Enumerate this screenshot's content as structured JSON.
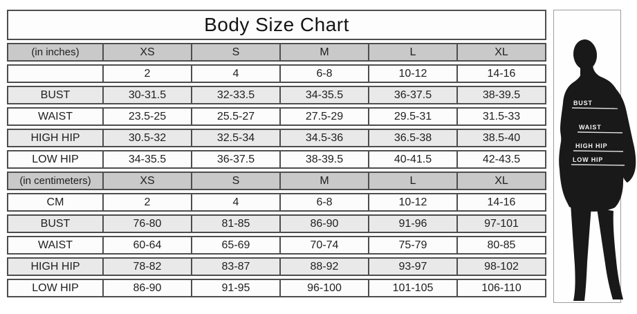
{
  "title": "Body Size Chart",
  "colors": {
    "header_bg": "#c9c9c9",
    "shaded_row_bg": "#e9e9e9",
    "plain_row_bg": "#fcfcfc",
    "table_border": "#4d4d4d",
    "silhouette_fill": "#191919"
  },
  "chart_data": {
    "type": "table",
    "title": "Body Size Chart",
    "sections": [
      {
        "unit_label": "(in inches)",
        "sizes": [
          "XS",
          "S",
          "M",
          "L",
          "XL"
        ],
        "rows": [
          {
            "label": "",
            "values": [
              "2",
              "4",
              "6-8",
              "10-12",
              "14-16"
            ]
          },
          {
            "label": "BUST",
            "values": [
              "30-31.5",
              "32-33.5",
              "34-35.5",
              "36-37.5",
              "38-39.5"
            ]
          },
          {
            "label": "WAIST",
            "values": [
              "23.5-25",
              "25.5-27",
              "27.5-29",
              "29.5-31",
              "31.5-33"
            ]
          },
          {
            "label": "HIGH HIP",
            "values": [
              "30.5-32",
              "32.5-34",
              "34.5-36",
              "36.5-38",
              "38.5-40"
            ]
          },
          {
            "label": "LOW HIP",
            "values": [
              "34-35.5",
              "36-37.5",
              "38-39.5",
              "40-41.5",
              "42-43.5"
            ]
          }
        ]
      },
      {
        "unit_label": "(in centimeters)",
        "sizes": [
          "XS",
          "S",
          "M",
          "L",
          "XL"
        ],
        "rows": [
          {
            "label": "CM",
            "values": [
              "2",
              "4",
              "6-8",
              "10-12",
              "14-16"
            ]
          },
          {
            "label": "BUST",
            "values": [
              "76-80",
              "81-85",
              "86-90",
              "91-96",
              "97-101"
            ]
          },
          {
            "label": "WAIST",
            "values": [
              "60-64",
              "65-69",
              "70-74",
              "75-79",
              "80-85"
            ]
          },
          {
            "label": "HIGH HIP",
            "values": [
              "78-82",
              "83-87",
              "88-92",
              "93-97",
              "98-102"
            ]
          },
          {
            "label": "LOW HIP",
            "values": [
              "86-90",
              "91-95",
              "96-100",
              "101-105",
              "106-110"
            ]
          }
        ]
      }
    ]
  },
  "figure": {
    "labels": [
      "BUST",
      "WAIST",
      "HIGH HIP",
      "LOW HIP"
    ]
  }
}
